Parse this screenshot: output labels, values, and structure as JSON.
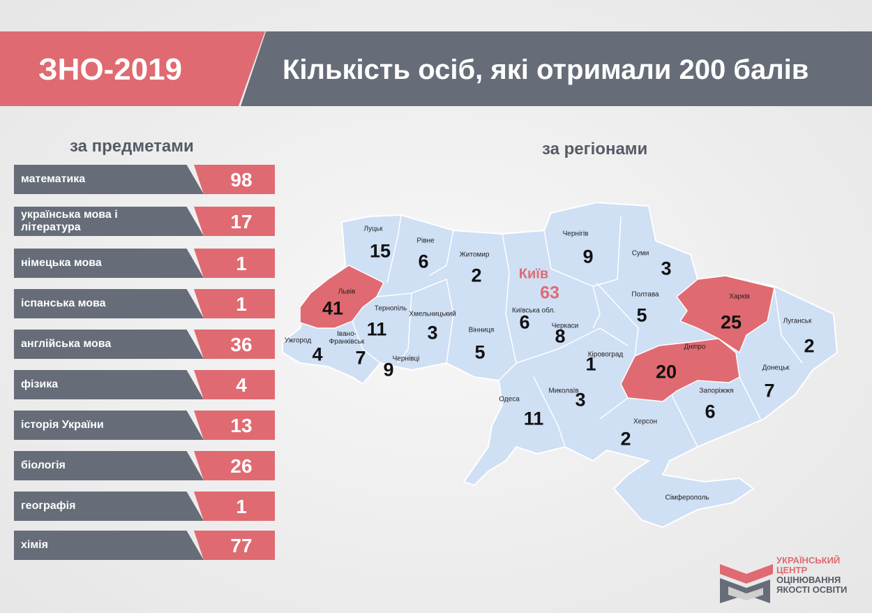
{
  "header": {
    "tag": "ЗНО-2019",
    "title": "Кількість осіб, які отримали 200 балів"
  },
  "subjects": {
    "title": "за предметами",
    "rows": [
      {
        "name": "математика",
        "value": 98
      },
      {
        "name": "українська мова і література",
        "value": 17
      },
      {
        "name": "німецька мова",
        "value": 1
      },
      {
        "name": "іспанська мова",
        "value": 1
      },
      {
        "name": "англійська мова",
        "value": 36
      },
      {
        "name": "фізика",
        "value": 4
      },
      {
        "name": "історія України",
        "value": 13
      },
      {
        "name": "біологія",
        "value": 26
      },
      {
        "name": "географія",
        "value": 1
      },
      {
        "name": "хімія",
        "value": 77
      }
    ]
  },
  "regions": {
    "title": "за регіонами",
    "items": [
      {
        "name": "Луцьк",
        "value": 15
      },
      {
        "name": "Рівне",
        "value": 6
      },
      {
        "name": "Житомир",
        "value": 2
      },
      {
        "name": "Київ",
        "value": 63
      },
      {
        "name": "Чернігів",
        "value": 9
      },
      {
        "name": "Суми",
        "value": 3
      },
      {
        "name": "Полтава",
        "value": 5
      },
      {
        "name": "Харків",
        "value": 25
      },
      {
        "name": "Луганськ",
        "value": 2
      },
      {
        "name": "Львів",
        "value": 41
      },
      {
        "name": "Тернопіль",
        "value": 11
      },
      {
        "name": "Хмельницький",
        "value": 3
      },
      {
        "name": "Вінниця",
        "value": 5
      },
      {
        "name": "Київська обл.",
        "value": 6
      },
      {
        "name": "Черкаси",
        "value": 8
      },
      {
        "name": "Кіровоград",
        "value": 1
      },
      {
        "name": "Дніпро",
        "value": 20
      },
      {
        "name": "Донецьк",
        "value": 7
      },
      {
        "name": "Ужгород",
        "value": 4
      },
      {
        "name": "Івано-Франківськ",
        "value": 7
      },
      {
        "name": "Чернівці",
        "value": 9
      },
      {
        "name": "Одеса",
        "value": 11
      },
      {
        "name": "Миколаїв",
        "value": 3
      },
      {
        "name": "Запоріжжя",
        "value": 6
      },
      {
        "name": "Херсон",
        "value": 2
      }
    ],
    "extra_label": "Сімферополь"
  },
  "logo": [
    "УКРАЇНСЬКИЙ",
    "ЦЕНТР",
    "ОЦІНЮВАННЯ",
    "ЯКОСТІ ОСВІТИ"
  ]
}
